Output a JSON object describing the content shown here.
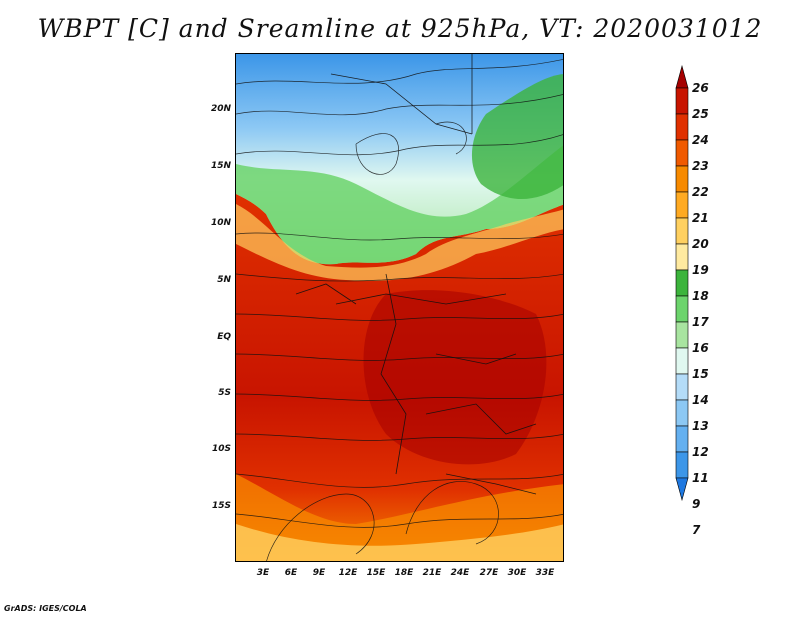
{
  "title": "WBPT [C] and Sreamline at 925hPa, VT: 2020031012",
  "credit": "GrADS: IGES/COLA",
  "map": {
    "lat_labels": [
      "20N",
      "15N",
      "10N",
      "5N",
      "EQ",
      "5S",
      "10S",
      "15S"
    ],
    "lon_labels": [
      "3E",
      "6E",
      "9E",
      "12E",
      "15E",
      "18E",
      "21E",
      "24E",
      "27E",
      "30E",
      "33E"
    ]
  },
  "colorbar": {
    "labels": [
      "26",
      "25",
      "24",
      "23",
      "22",
      "21",
      "20",
      "19",
      "18",
      "17",
      "16",
      "15",
      "14",
      "13",
      "12",
      "11",
      "9",
      "7"
    ],
    "colors": [
      "#a50000",
      "#c81400",
      "#e03000",
      "#f05a00",
      "#f78a00",
      "#ffaa22",
      "#ffd060",
      "#ffeaa0",
      "#3cb43c",
      "#6cd46c",
      "#a8e4a0",
      "#e0f8f0",
      "#b4dcf8",
      "#8cc8f4",
      "#64b0f0",
      "#3c96e8",
      "#1e78e0"
    ]
  }
}
